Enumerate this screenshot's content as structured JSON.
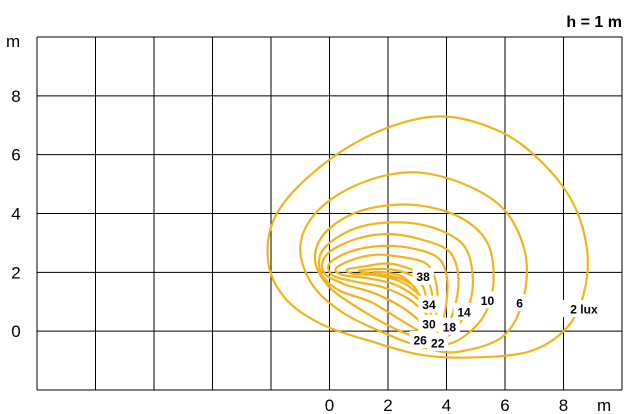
{
  "chart_data": {
    "type": "contour",
    "title": "h = 1 m",
    "x_unit": "m",
    "y_unit": "m",
    "x_ticks": [
      0,
      2,
      4,
      6,
      8
    ],
    "y_ticks": [
      0,
      2,
      4,
      6,
      8
    ],
    "xlim": [
      -10,
      10
    ],
    "ylim": [
      -2,
      10
    ],
    "grid": true,
    "line_color": "#f2b31b",
    "contours": [
      {
        "label": "2 lux",
        "value": 2,
        "points": [
          [
            4.7,
            -0.9
          ],
          [
            6.8,
            -0.7
          ],
          [
            8.1,
            0.1
          ],
          [
            8.7,
            1.3
          ],
          [
            8.8,
            2.8
          ],
          [
            8.3,
            4.4
          ],
          [
            7.2,
            5.8
          ],
          [
            5.8,
            6.8
          ],
          [
            3.8,
            7.3
          ],
          [
            1.7,
            6.8
          ],
          [
            -0.3,
            5.6
          ],
          [
            -1.8,
            4.0
          ],
          [
            -2.1,
            2.4
          ],
          [
            -1.5,
            1.1
          ],
          [
            -0.2,
            0.2
          ],
          [
            1.6,
            -0.4
          ],
          [
            3.1,
            -0.8
          ]
        ]
      },
      {
        "label": "6",
        "value": 6,
        "points": [
          [
            4.4,
            -0.7
          ],
          [
            5.9,
            -0.2
          ],
          [
            6.6,
            1.0
          ],
          [
            6.7,
            2.6
          ],
          [
            6.0,
            4.1
          ],
          [
            4.6,
            5.0
          ],
          [
            2.8,
            5.4
          ],
          [
            1.0,
            5.0
          ],
          [
            -0.4,
            4.1
          ],
          [
            -1.0,
            2.9
          ],
          [
            -0.6,
            1.6
          ],
          [
            0.5,
            0.6
          ],
          [
            2.2,
            -0.2
          ],
          [
            3.4,
            -0.6
          ]
        ]
      },
      {
        "label": "10",
        "value": 10,
        "points": [
          [
            4.2,
            -0.4
          ],
          [
            5.2,
            0.4
          ],
          [
            5.6,
            1.6
          ],
          [
            5.4,
            3.0
          ],
          [
            4.4,
            3.9
          ],
          [
            2.8,
            4.3
          ],
          [
            1.1,
            4.1
          ],
          [
            -0.1,
            3.4
          ],
          [
            -0.5,
            2.5
          ],
          [
            -0.1,
            1.6
          ],
          [
            0.8,
            0.9
          ],
          [
            2.2,
            0.1
          ],
          [
            3.3,
            -0.3
          ]
        ]
      },
      {
        "label": "14",
        "value": 14,
        "points": [
          [
            4.0,
            -0.2
          ],
          [
            4.7,
            0.7
          ],
          [
            4.9,
            1.8
          ],
          [
            4.6,
            2.9
          ],
          [
            3.6,
            3.5
          ],
          [
            2.3,
            3.7
          ],
          [
            0.9,
            3.5
          ],
          [
            -0.2,
            2.8
          ],
          [
            -0.3,
            2.0
          ],
          [
            0.3,
            1.4
          ],
          [
            1.4,
            1.0
          ],
          [
            2.4,
            0.4
          ],
          [
            3.3,
            -0.1
          ]
        ]
      },
      {
        "label": "18",
        "value": 18,
        "points": [
          [
            3.9,
            0.0
          ],
          [
            4.3,
            0.9
          ],
          [
            4.4,
            1.9
          ],
          [
            4.1,
            2.7
          ],
          [
            3.2,
            3.1
          ],
          [
            2.0,
            3.3
          ],
          [
            0.8,
            3.1
          ],
          [
            -0.1,
            2.6
          ],
          [
            -0.2,
            2.0
          ],
          [
            0.5,
            1.6
          ],
          [
            1.5,
            1.3
          ],
          [
            2.5,
            0.8
          ],
          [
            3.3,
            0.2
          ]
        ]
      },
      {
        "label": "22",
        "value": 22,
        "points": [
          [
            3.8,
            0.2
          ],
          [
            4.0,
            1.0
          ],
          [
            4.0,
            1.9
          ],
          [
            3.7,
            2.5
          ],
          [
            2.9,
            2.8
          ],
          [
            1.8,
            2.9
          ],
          [
            0.7,
            2.7
          ],
          [
            0.0,
            2.3
          ],
          [
            0.1,
            1.9
          ],
          [
            0.8,
            1.7
          ],
          [
            1.8,
            1.5
          ],
          [
            2.7,
            1.1
          ],
          [
            3.4,
            0.5
          ]
        ]
      },
      {
        "label": "26",
        "value": 26,
        "points": [
          [
            3.6,
            0.4
          ],
          [
            3.7,
            1.1
          ],
          [
            3.6,
            1.8
          ],
          [
            3.3,
            2.3
          ],
          [
            2.6,
            2.5
          ],
          [
            1.6,
            2.6
          ],
          [
            0.7,
            2.4
          ],
          [
            0.2,
            2.1
          ],
          [
            0.5,
            1.9
          ],
          [
            1.3,
            1.8
          ],
          [
            2.2,
            1.6
          ],
          [
            2.9,
            1.2
          ],
          [
            3.4,
            0.7
          ]
        ]
      },
      {
        "label": "30",
        "value": 30,
        "points": [
          [
            3.5,
            0.7
          ],
          [
            3.5,
            1.3
          ],
          [
            3.3,
            1.8
          ],
          [
            2.8,
            2.1
          ],
          [
            2.0,
            2.3
          ],
          [
            1.2,
            2.2
          ],
          [
            0.6,
            2.1
          ],
          [
            0.8,
            1.95
          ],
          [
            1.6,
            1.9
          ],
          [
            2.4,
            1.7
          ],
          [
            3.0,
            1.3
          ],
          [
            3.3,
            0.9
          ]
        ]
      },
      {
        "label": "34",
        "value": 34,
        "points": [
          [
            3.3,
            1.0
          ],
          [
            3.2,
            1.5
          ],
          [
            2.8,
            1.9
          ],
          [
            2.1,
            2.1
          ],
          [
            1.4,
            2.1
          ],
          [
            1.0,
            2.05
          ],
          [
            1.5,
            1.95
          ],
          [
            2.2,
            1.85
          ],
          [
            2.8,
            1.6
          ],
          [
            3.1,
            1.2
          ]
        ]
      },
      {
        "label": "38",
        "value": 38,
        "points": [
          [
            2.9,
            1.5
          ],
          [
            2.5,
            1.85
          ],
          [
            1.9,
            2.0
          ],
          [
            1.5,
            2.0
          ],
          [
            1.9,
            1.9
          ],
          [
            2.4,
            1.8
          ],
          [
            2.8,
            1.6
          ]
        ]
      }
    ],
    "annotations": [
      {
        "text": "38",
        "x": 3.2,
        "y": 1.85
      },
      {
        "text": "34",
        "x": 3.4,
        "y": 0.9
      },
      {
        "text": "30",
        "x": 3.4,
        "y": 0.25
      },
      {
        "text": "26",
        "x": 3.1,
        "y": -0.3
      },
      {
        "text": "22",
        "x": 3.7,
        "y": -0.4
      },
      {
        "text": "18",
        "x": 4.1,
        "y": 0.15
      },
      {
        "text": "14",
        "x": 4.6,
        "y": 0.65
      },
      {
        "text": "10",
        "x": 5.4,
        "y": 1.05
      },
      {
        "text": "6",
        "x": 6.5,
        "y": 0.95
      },
      {
        "text": "2 lux",
        "x": 8.7,
        "y": 0.75
      }
    ]
  }
}
